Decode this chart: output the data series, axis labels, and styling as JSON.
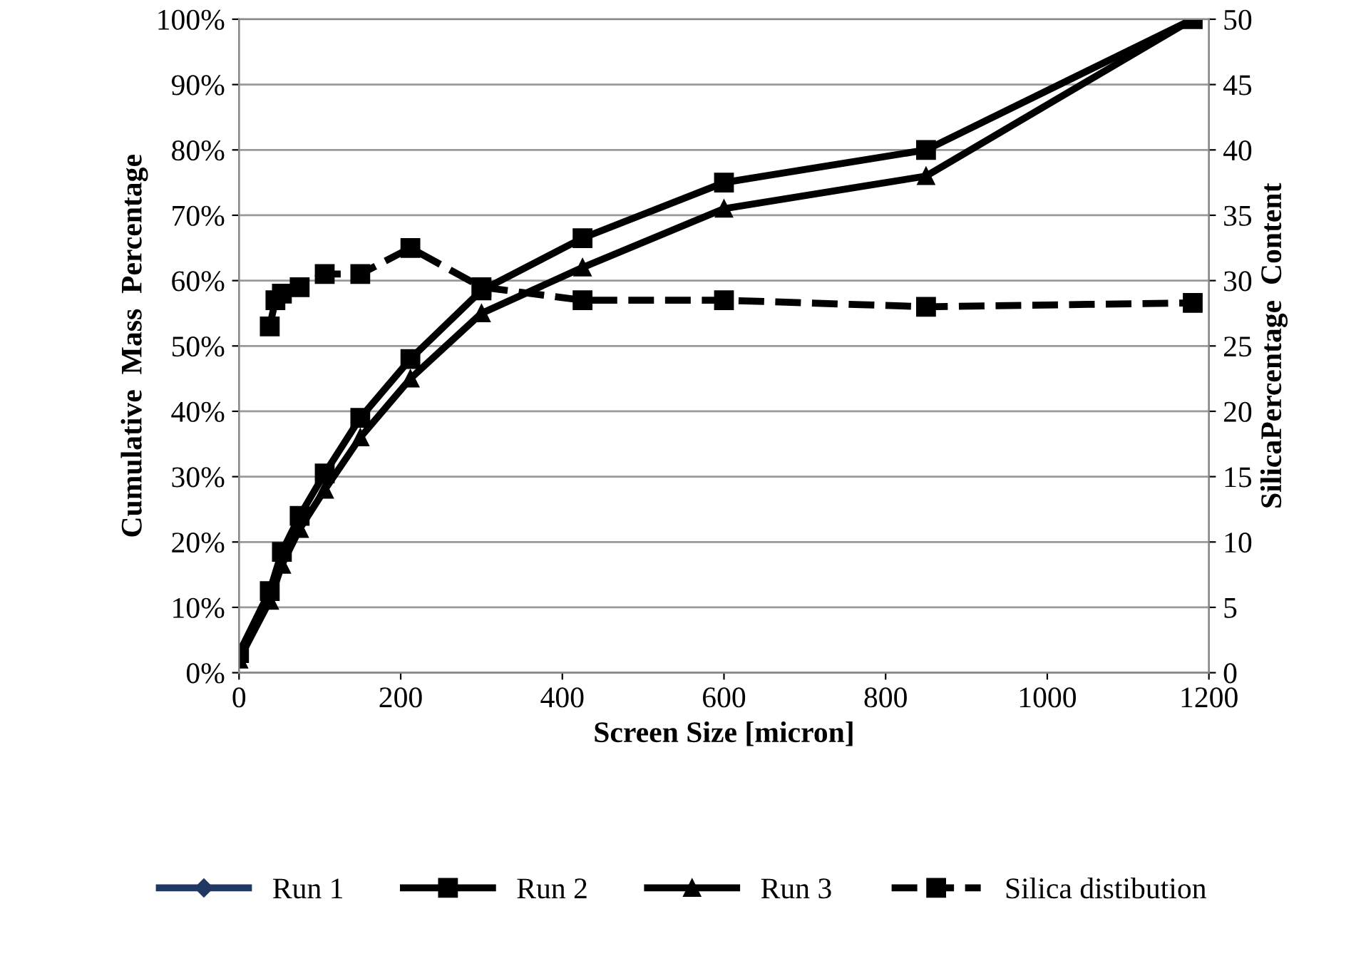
{
  "chart_data": {
    "type": "line",
    "xlabel": "Screen Size [micron]",
    "ylabel": "Cumulative  Mass  Percentage",
    "y2label": "SilicaPercentage  Content",
    "x": [
      0,
      38,
      53,
      75,
      106,
      150,
      212,
      300,
      425,
      600,
      850,
      1180
    ],
    "series": [
      {
        "name": "Run 1",
        "color": "#1f3864",
        "marker": "diamond",
        "line_style": "solid",
        "values": [
          null,
          null,
          null,
          null,
          null,
          null,
          null,
          null,
          null,
          null,
          null,
          null
        ]
      },
      {
        "name": "Run 2",
        "color": "#000000",
        "marker": "square",
        "line_style": "solid",
        "values": [
          3,
          12.5,
          18.5,
          24,
          30.5,
          39,
          48,
          58.5,
          66.5,
          75,
          80,
          100
        ]
      },
      {
        "name": "Run 3",
        "color": "#000000",
        "marker": "triangle",
        "line_style": "solid",
        "values": [
          2,
          11,
          16.5,
          22,
          28,
          36,
          45,
          55,
          62,
          71,
          76,
          100
        ]
      },
      {
        "name": "Silica distibution",
        "color": "#000000",
        "marker": "square",
        "line_style": "dashed",
        "axis": "y2",
        "x": [
          38,
          45,
          53,
          75,
          106,
          150,
          212,
          300,
          425,
          600,
          850,
          1180
        ],
        "values": [
          26.5,
          28.5,
          29,
          29.5,
          30.5,
          30.5,
          32.5,
          29.5,
          28.5,
          28.5,
          28,
          28.3
        ]
      }
    ],
    "xlim": [
      0,
      1200
    ],
    "xticks": [
      0,
      200,
      400,
      600,
      800,
      1000,
      1200
    ],
    "ylim": [
      0,
      100
    ],
    "yticks": [
      {
        "value": 0,
        "label": "0%"
      },
      {
        "value": 10,
        "label": "10%"
      },
      {
        "value": 20,
        "label": "20%"
      },
      {
        "value": 30,
        "label": "30%"
      },
      {
        "value": 40,
        "label": "40%"
      },
      {
        "value": 50,
        "label": "50%"
      },
      {
        "value": 60,
        "label": "60%"
      },
      {
        "value": 70,
        "label": "70%"
      },
      {
        "value": 80,
        "label": "80%"
      },
      {
        "value": 90,
        "label": "90%"
      },
      {
        "value": 100,
        "label": "100%"
      }
    ],
    "y2lim": [
      0,
      50
    ],
    "y2ticks": [
      0,
      5,
      10,
      15,
      20,
      25,
      30,
      35,
      40,
      45,
      50
    ],
    "grid": "y",
    "legend": "bottom"
  }
}
